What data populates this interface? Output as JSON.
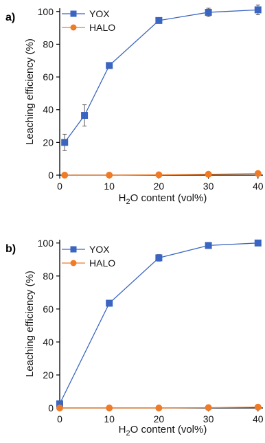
{
  "chart_data": [
    {
      "panel_label": "b)",
      "type": "line",
      "xlabel": "H2O content (vol%)",
      "xlabel_parts": {
        "pre": "H",
        "sub": "2",
        "post": "O content (vol%)"
      },
      "ylabel": "Leaching efficiency (%)",
      "xlim": [
        0,
        41
      ],
      "ylim": [
        0,
        102
      ],
      "xticks": [
        0,
        10,
        20,
        30,
        40
      ],
      "yticks": [
        0,
        20,
        40,
        60,
        80,
        100
      ],
      "grid": false,
      "legend_position": "top-left",
      "series": [
        {
          "name": "YOX",
          "color": "#3a65c0",
          "marker": "square",
          "x": [
            0,
            10,
            20,
            30,
            40
          ],
          "y": [
            2.5,
            63.5,
            91,
            98.5,
            100
          ],
          "err": [
            0.8,
            1.5,
            2,
            1.3,
            0.5
          ]
        },
        {
          "name": "HALO",
          "color": "#f07b26",
          "marker": "circle",
          "x": [
            0,
            10,
            20,
            30,
            40
          ],
          "y": [
            0,
            0,
            0,
            0.2,
            0.5
          ],
          "err": [
            0,
            0,
            0,
            0,
            0
          ]
        }
      ]
    },
    {
      "panel_label": "a)",
      "type": "line",
      "xlabel": "H2O content (vol%)",
      "xlabel_parts": {
        "pre": "H",
        "sub": "2",
        "post": "O content (vol%)"
      },
      "ylabel": "Leaching efficiency (%)",
      "xlim": [
        0,
        41
      ],
      "ylim": [
        0,
        102
      ],
      "xticks": [
        0,
        10,
        20,
        30,
        40
      ],
      "yticks": [
        0,
        20,
        40,
        60,
        80,
        100
      ],
      "grid": false,
      "legend_position": "top-left",
      "series": [
        {
          "name": "YOX",
          "color": "#3a65c0",
          "marker": "square",
          "x": [
            1,
            5,
            10,
            20,
            30,
            40
          ],
          "y": [
            20,
            36.5,
            67,
            94.5,
            99.5,
            101
          ],
          "err": [
            5,
            6.5,
            0.8,
            1,
            2.5,
            3
          ]
        },
        {
          "name": "HALO",
          "color": "#f07b26",
          "marker": "circle",
          "x": [
            1,
            10,
            20,
            30,
            40
          ],
          "y": [
            0,
            0,
            0.2,
            0.5,
            1
          ],
          "err": [
            0,
            0,
            0,
            0,
            0
          ]
        }
      ]
    }
  ]
}
